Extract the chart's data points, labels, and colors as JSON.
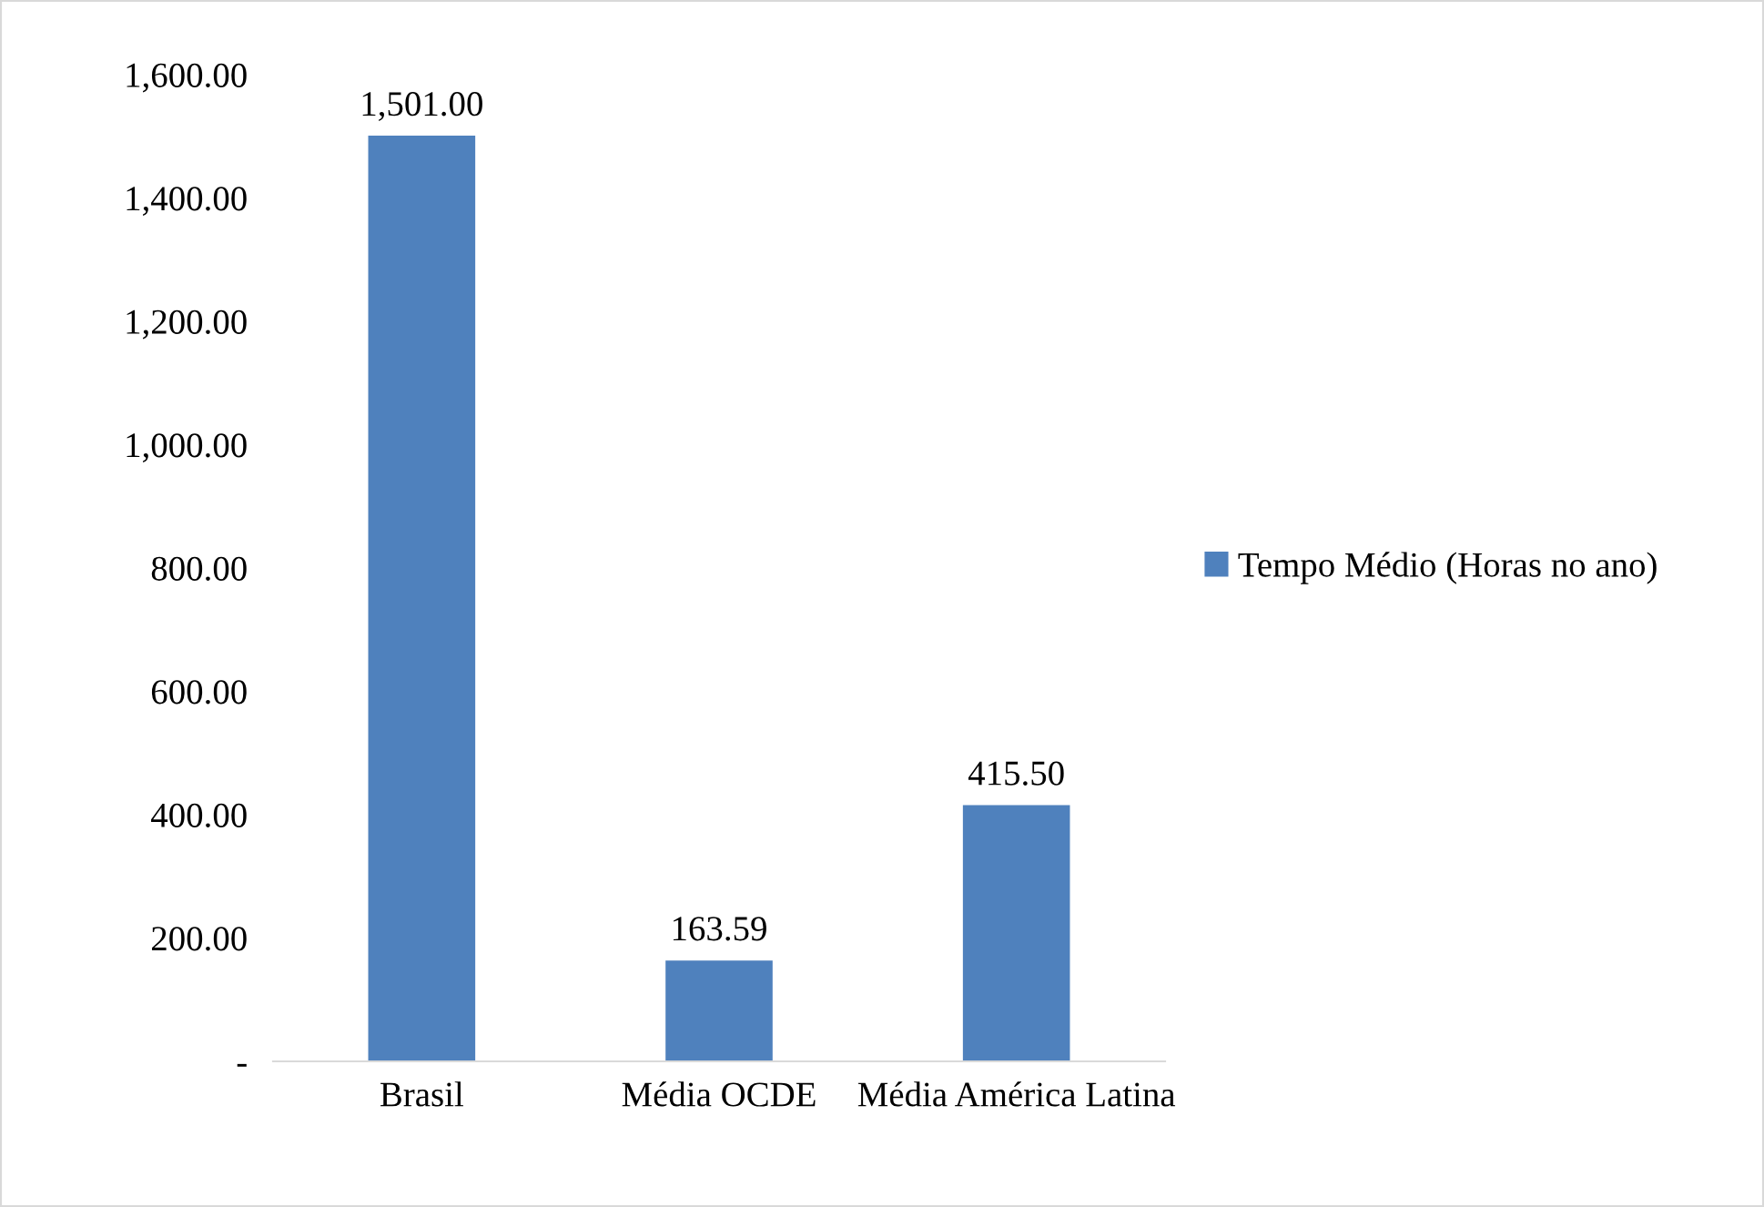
{
  "chart_data": {
    "type": "bar",
    "categories": [
      "Brasil",
      "Média OCDE",
      "Média América Latina"
    ],
    "series": [
      {
        "name": "Tempo Médio (Horas no ano)",
        "color": "#4f81bd",
        "values": [
          1501.0,
          163.59,
          415.5
        ],
        "value_labels": [
          "1,501.00",
          "163.59",
          "415.50"
        ]
      }
    ],
    "ylim": [
      0,
      1600
    ],
    "yticks": [
      {
        "value": 0,
        "label": "-"
      },
      {
        "value": 200,
        "label": "200.00"
      },
      {
        "value": 400,
        "label": "400.00"
      },
      {
        "value": 600,
        "label": "600.00"
      },
      {
        "value": 800,
        "label": "800.00"
      },
      {
        "value": 1000,
        "label": "1,000.00"
      },
      {
        "value": 1200,
        "label": "1,200.00"
      },
      {
        "value": 1400,
        "label": "1,400.00"
      },
      {
        "value": 1600,
        "label": "1,600.00"
      }
    ],
    "grid": false,
    "legend": "right"
  }
}
